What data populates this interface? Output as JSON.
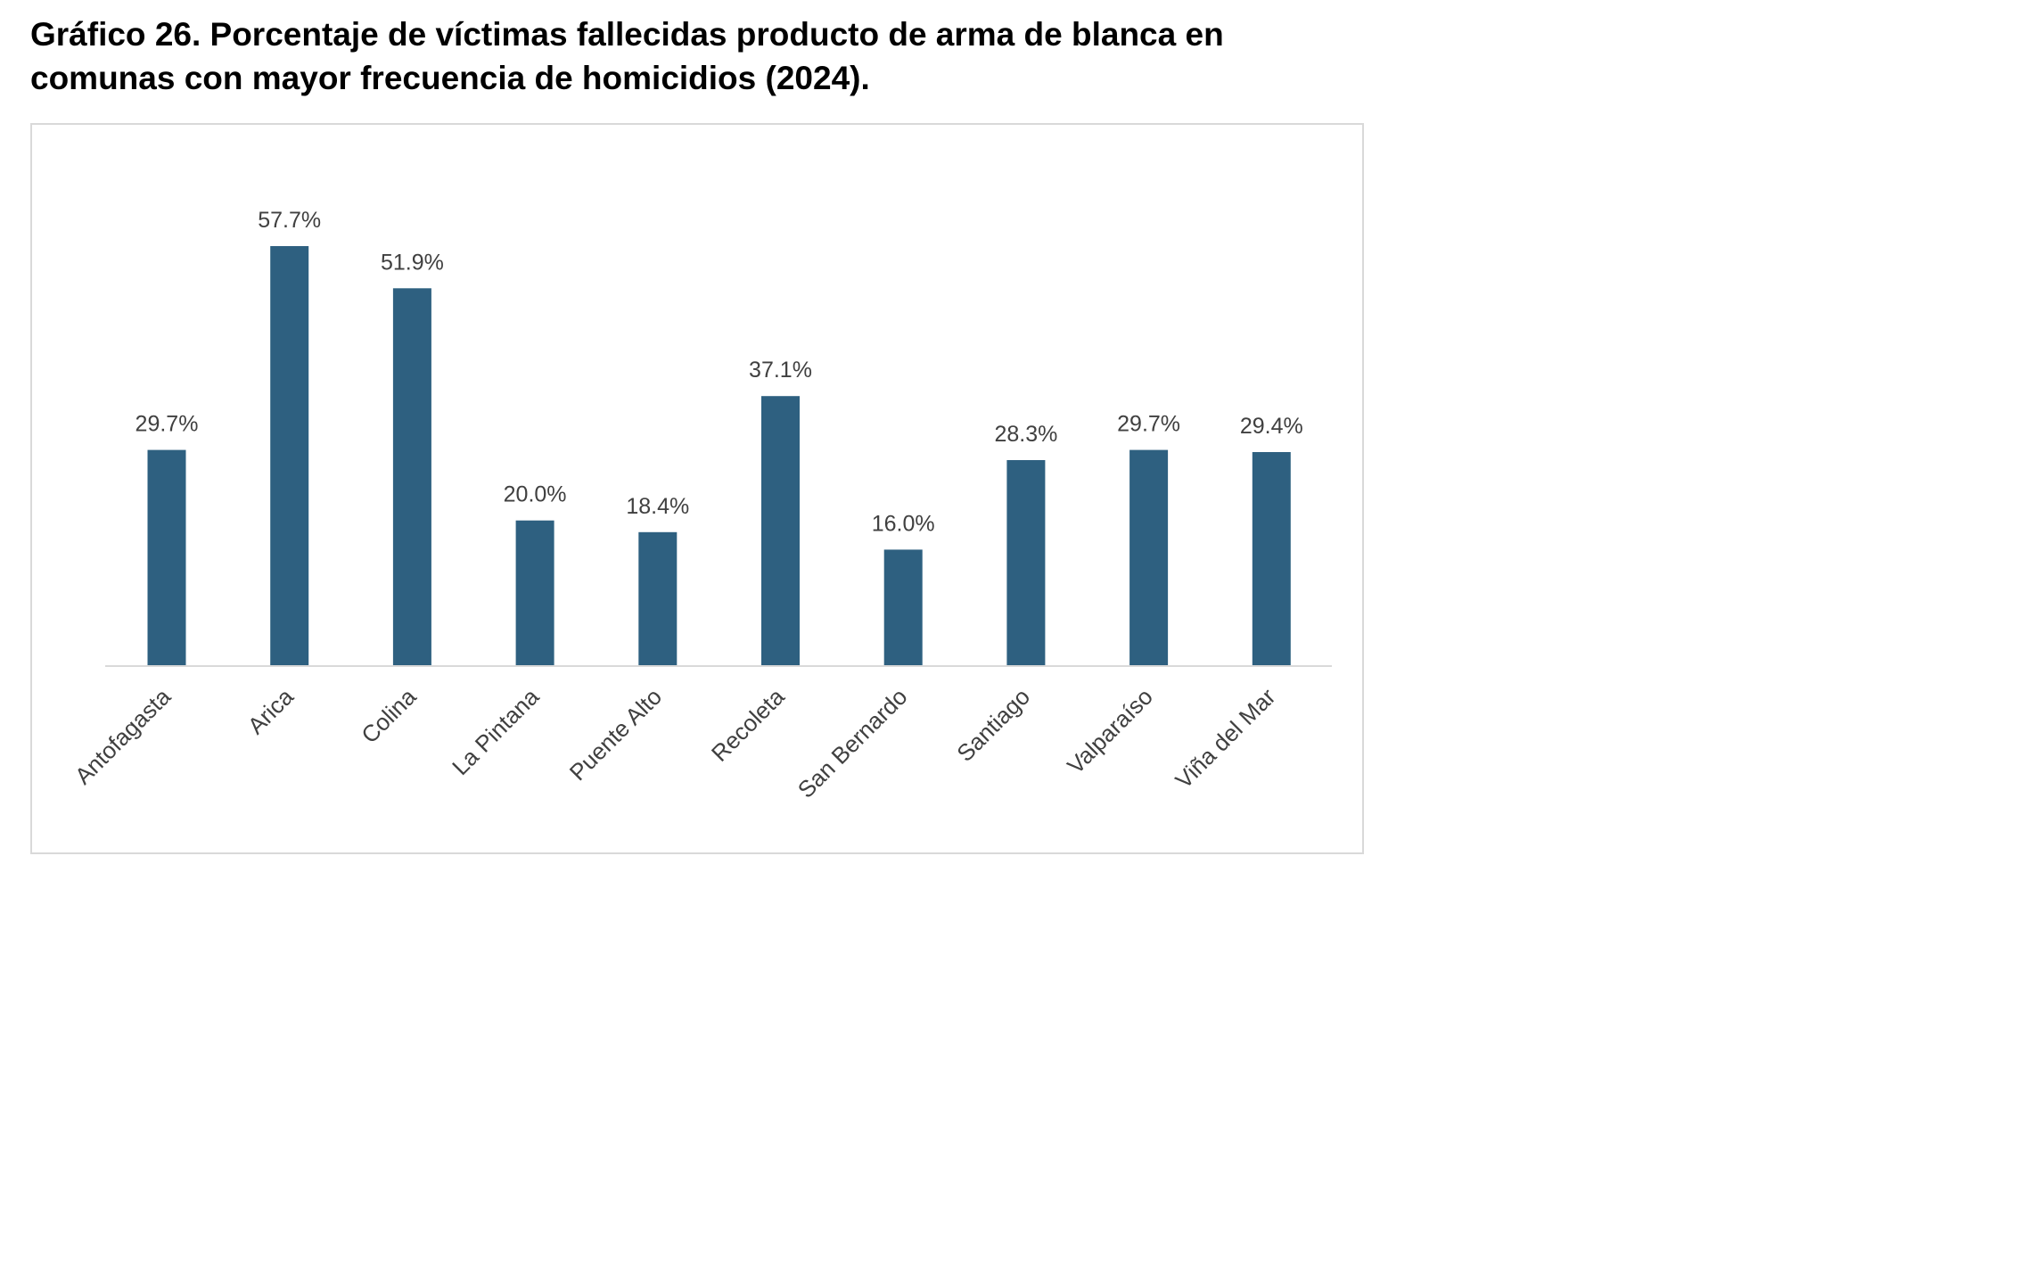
{
  "title": "Gráfico 26. Porcentaje de víctimas fallecidas producto de arma de blanca en comunas con mayor frecuencia de homicidios (2024).",
  "colors": {
    "bar": "#2e6080",
    "label_text": "#404040",
    "axis_line": "#d9d9d9",
    "frame": "#d9d9d9"
  },
  "chart_data": {
    "type": "bar",
    "title": "Gráfico 26. Porcentaje de víctimas fallecidas producto de arma de blanca en comunas con mayor frecuencia de homicidios (2024).",
    "xlabel": "",
    "ylabel": "",
    "categories": [
      "Antofagasta",
      "Arica",
      "Colina",
      "La Pintana",
      "Puente Alto",
      "Recoleta",
      "San Bernardo",
      "Santiago",
      "Valparaíso",
      "Viña del Mar"
    ],
    "values": [
      29.7,
      57.7,
      51.9,
      20.0,
      18.4,
      37.1,
      16.0,
      28.3,
      29.7,
      29.4
    ],
    "data_labels": [
      "29.7%",
      "57.7%",
      "51.9%",
      "20.0%",
      "18.4%",
      "37.1%",
      "16.0%",
      "28.3%",
      "29.7%",
      "29.4%"
    ],
    "ylim": [
      0,
      57.7
    ],
    "grid": false,
    "legend": "none",
    "y_axis_visible": false
  }
}
